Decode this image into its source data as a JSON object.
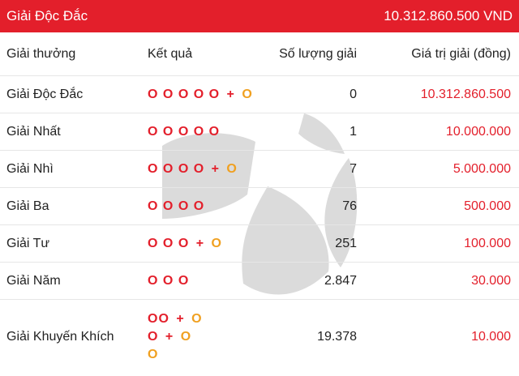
{
  "header": {
    "title": "Giải Độc Đắc",
    "jackpot": "10.312.860.500 VND"
  },
  "columns": {
    "prize": "Giải thưởng",
    "result": "Kết quả",
    "count": "Số lượng giải",
    "value": "Giá trị giải (đồng)"
  },
  "ball_symbol": "O",
  "plus_symbol": "+",
  "rows": [
    {
      "name": "Giải Độc Đắc",
      "count": "0",
      "value": "10.312.860.500"
    },
    {
      "name": "Giải Nhất",
      "count": "1",
      "value": "10.000.000"
    },
    {
      "name": "Giải Nhì",
      "count": "7",
      "value": "5.000.000"
    },
    {
      "name": "Giải Ba",
      "count": "76",
      "value": "500.000"
    },
    {
      "name": "Giải Tư",
      "count": "251",
      "value": "100.000"
    },
    {
      "name": "Giải Năm",
      "count": "2.847",
      "value": "30.000"
    },
    {
      "name": "Giải Khuyến Khích",
      "count": "19.378",
      "value": "10.000"
    }
  ],
  "colors": {
    "header_bg": "#e31f2b",
    "red": "#e31f2b",
    "gold": "#f0a020"
  }
}
